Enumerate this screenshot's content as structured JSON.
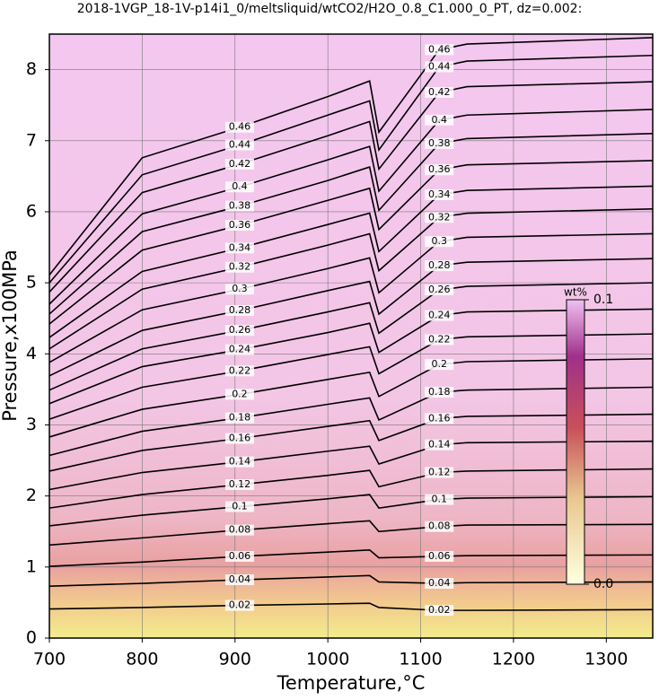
{
  "chart_data": {
    "type": "contour",
    "title": "2018-1VGP_18-1V-p14i1_0/meltsliquid/wtCO2/H2O_0.8_C1.000_0_PT, dz=0.002:",
    "xlabel": "Temperature,°C",
    "ylabel": "Pressure,x100MPa",
    "xlim": [
      700,
      1350
    ],
    "ylim": [
      0,
      8.5
    ],
    "xticks": [
      700,
      800,
      900,
      1000,
      1100,
      1200,
      1300
    ],
    "yticks": [
      0,
      1,
      2,
      3,
      4,
      5,
      6,
      7,
      8
    ],
    "grid": true,
    "label_x": [
      905,
      1120
    ],
    "x": [
      700,
      800,
      905,
      1000,
      1045,
      1055,
      1120,
      1150,
      1350
    ],
    "contours": [
      {
        "level": 0.02,
        "y": [
          0.41,
          0.43,
          0.46,
          0.48,
          0.49,
          0.43,
          0.39,
          0.39,
          0.4
        ]
      },
      {
        "level": 0.04,
        "y": [
          0.73,
          0.77,
          0.82,
          0.86,
          0.88,
          0.79,
          0.77,
          0.78,
          0.79
        ]
      },
      {
        "level": 0.06,
        "y": [
          1.01,
          1.07,
          1.15,
          1.21,
          1.24,
          1.13,
          1.15,
          1.16,
          1.17
        ]
      },
      {
        "level": 0.08,
        "y": [
          1.31,
          1.41,
          1.52,
          1.61,
          1.65,
          1.5,
          1.57,
          1.59,
          1.6
        ]
      },
      {
        "level": 0.1,
        "y": [
          1.58,
          1.73,
          1.85,
          1.96,
          2.02,
          1.83,
          1.95,
          1.97,
          1.99
        ]
      },
      {
        "level": 0.12,
        "y": [
          1.83,
          2.02,
          2.16,
          2.29,
          2.36,
          2.13,
          2.33,
          2.35,
          2.38
        ]
      },
      {
        "level": 0.14,
        "y": [
          2.09,
          2.33,
          2.48,
          2.63,
          2.7,
          2.45,
          2.72,
          2.75,
          2.77
        ]
      },
      {
        "level": 0.16,
        "y": [
          2.35,
          2.64,
          2.81,
          2.98,
          3.06,
          2.78,
          3.09,
          3.12,
          3.15
        ]
      },
      {
        "level": 0.18,
        "y": [
          2.57,
          2.91,
          3.1,
          3.29,
          3.38,
          3.07,
          3.46,
          3.49,
          3.53
        ]
      },
      {
        "level": 0.2,
        "y": [
          2.83,
          3.22,
          3.43,
          3.64,
          3.74,
          3.4,
          3.85,
          3.89,
          3.93
        ]
      },
      {
        "level": 0.22,
        "y": [
          3.08,
          3.53,
          3.76,
          3.99,
          4.1,
          3.72,
          4.2,
          4.24,
          4.28
        ]
      },
      {
        "level": 0.24,
        "y": [
          3.3,
          3.82,
          4.06,
          4.3,
          4.43,
          4.02,
          4.54,
          4.59,
          4.63
        ]
      },
      {
        "level": 0.26,
        "y": [
          3.49,
          4.07,
          4.33,
          4.59,
          4.72,
          4.29,
          4.9,
          4.95,
          5.0
        ]
      },
      {
        "level": 0.28,
        "y": [
          3.69,
          4.33,
          4.61,
          4.89,
          5.02,
          4.56,
          5.24,
          5.29,
          5.34
        ]
      },
      {
        "level": 0.3,
        "y": [
          3.88,
          4.62,
          4.91,
          5.2,
          5.35,
          4.86,
          5.58,
          5.64,
          5.69
        ]
      },
      {
        "level": 0.32,
        "y": [
          4.07,
          4.91,
          5.22,
          5.53,
          5.69,
          5.17,
          5.92,
          5.98,
          6.04
        ]
      },
      {
        "level": 0.34,
        "y": [
          4.23,
          5.16,
          5.49,
          5.82,
          5.98,
          5.44,
          6.24,
          6.3,
          6.36
        ]
      },
      {
        "level": 0.36,
        "y": [
          4.42,
          5.46,
          5.81,
          6.16,
          6.33,
          5.75,
          6.59,
          6.66,
          6.72
        ]
      },
      {
        "level": 0.38,
        "y": [
          4.56,
          5.72,
          6.08,
          6.44,
          6.63,
          6.02,
          6.96,
          7.03,
          7.1
        ]
      },
      {
        "level": 0.4,
        "y": [
          4.7,
          5.97,
          6.35,
          6.73,
          6.92,
          6.29,
          7.29,
          7.36,
          7.44
        ]
      },
      {
        "level": 0.42,
        "y": [
          4.87,
          6.27,
          6.67,
          7.07,
          7.27,
          6.6,
          7.68,
          7.76,
          7.83
        ]
      },
      {
        "level": 0.44,
        "y": [
          5.0,
          6.52,
          6.94,
          7.36,
          7.56,
          6.87,
          8.04,
          8.12,
          8.2
        ]
      },
      {
        "level": 0.46,
        "y": [
          5.11,
          6.76,
          7.19,
          7.62,
          7.84,
          7.12,
          8.28,
          8.36,
          8.45
        ]
      }
    ],
    "colorbar": {
      "label": "wt%",
      "clim": [
        0,
        0.1
      ],
      "ticks": [
        0.1,
        {
          "value": 0,
          "label": "0.0"
        }
      ]
    }
  }
}
